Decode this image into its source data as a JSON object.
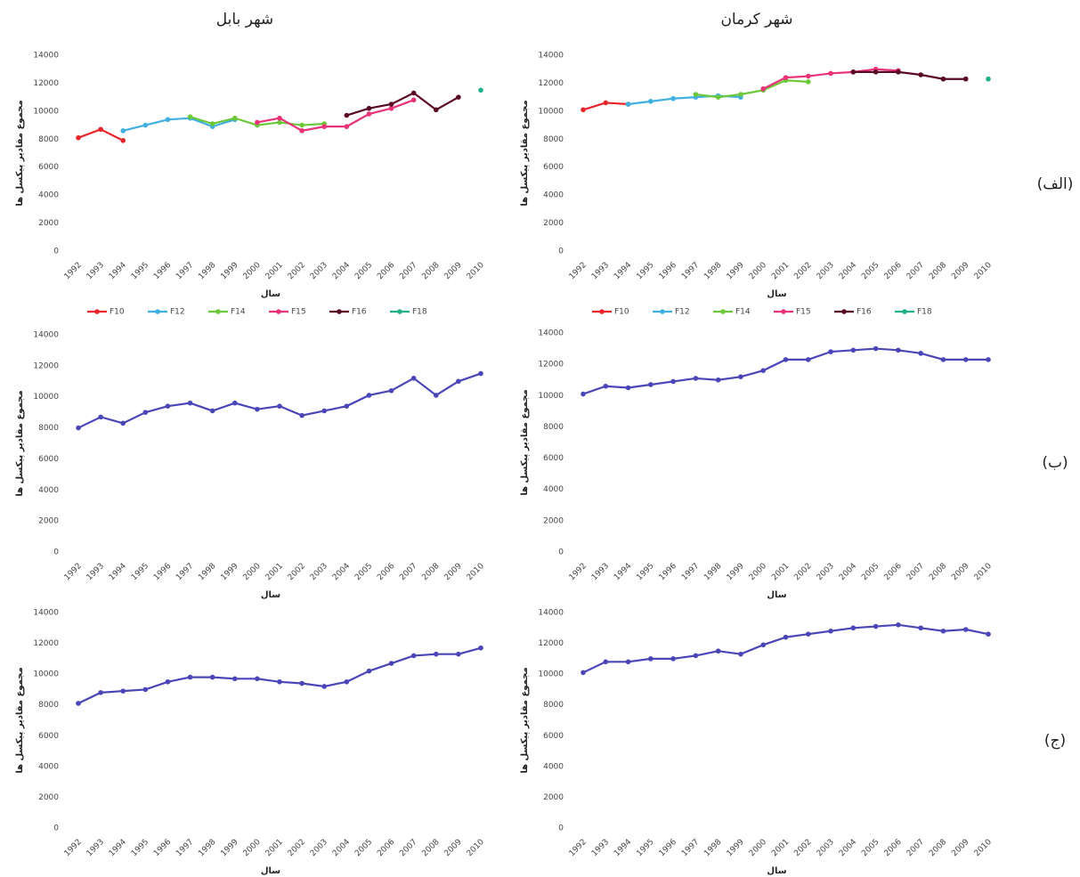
{
  "column_titles": [
    "شهر بابل",
    "شهر کرمان"
  ],
  "row_labels": [
    "(الف)",
    "(ب)",
    "(ج)"
  ],
  "chart_data": [
    {
      "type": "line",
      "xlabel": "سال",
      "ylabel": "مجموع مقادیر پیکسل ها",
      "categories": [
        "1992",
        "1993",
        "1994",
        "1995",
        "1996",
        "1997",
        "1998",
        "1999",
        "2000",
        "2001",
        "2002",
        "2003",
        "2004",
        "2005",
        "2006",
        "2007",
        "2008",
        "2009",
        "2010"
      ],
      "ylim": [
        0,
        14000
      ],
      "yticks": [
        0,
        2000,
        4000,
        6000,
        8000,
        10000,
        12000,
        14000
      ],
      "legend": "bottom",
      "series": [
        {
          "name": "F10",
          "color": "#e8262b",
          "values": [
            8100,
            8700,
            7900,
            null,
            null,
            null,
            null,
            null,
            null,
            null,
            null,
            null,
            null,
            null,
            null,
            null,
            null,
            null,
            null
          ]
        },
        {
          "name": "F12",
          "color": "#3fb0e0",
          "values": [
            null,
            null,
            8600,
            9000,
            9400,
            9500,
            8900,
            9400,
            null,
            null,
            null,
            null,
            null,
            null,
            null,
            null,
            null,
            null,
            null
          ]
        },
        {
          "name": "F14",
          "color": "#6cc83a",
          "values": [
            null,
            null,
            null,
            null,
            null,
            9600,
            9100,
            9500,
            9000,
            9200,
            9000,
            9100,
            null,
            null,
            null,
            null,
            null,
            null,
            null
          ]
        },
        {
          "name": "F15",
          "color": "#e8327a",
          "values": [
            null,
            null,
            null,
            null,
            null,
            null,
            null,
            null,
            9200,
            9500,
            8600,
            8900,
            8900,
            9800,
            10200,
            10800,
            null,
            null,
            null
          ]
        },
        {
          "name": "F16",
          "color": "#5a0a26",
          "values": [
            null,
            null,
            null,
            null,
            null,
            null,
            null,
            null,
            null,
            null,
            null,
            null,
            9700,
            10200,
            10500,
            11300,
            10100,
            11000,
            null
          ]
        },
        {
          "name": "F18",
          "color": "#22b08a",
          "values": [
            null,
            null,
            null,
            null,
            null,
            null,
            null,
            null,
            null,
            null,
            null,
            null,
            null,
            null,
            null,
            null,
            null,
            null,
            11500
          ]
        }
      ]
    },
    {
      "type": "line",
      "xlabel": "سال",
      "ylabel": "مجموع مقادیر پیکسل ها",
      "categories": [
        "1992",
        "1993",
        "1994",
        "1995",
        "1996",
        "1997",
        "1998",
        "1999",
        "2000",
        "2001",
        "2002",
        "2003",
        "2004",
        "2005",
        "2006",
        "2007",
        "2008",
        "2009",
        "2010"
      ],
      "ylim": [
        0,
        14000
      ],
      "yticks": [
        0,
        2000,
        4000,
        6000,
        8000,
        10000,
        12000,
        14000
      ],
      "legend": "bottom",
      "series": [
        {
          "name": "F10",
          "color": "#e8262b",
          "values": [
            10100,
            10600,
            10500,
            null,
            null,
            null,
            null,
            null,
            null,
            null,
            null,
            null,
            null,
            null,
            null,
            null,
            null,
            null,
            null
          ]
        },
        {
          "name": "F12",
          "color": "#3fb0e0",
          "values": [
            null,
            null,
            10500,
            10700,
            10900,
            11000,
            11100,
            11000,
            null,
            null,
            null,
            null,
            null,
            null,
            null,
            null,
            null,
            null,
            null
          ]
        },
        {
          "name": "F14",
          "color": "#6cc83a",
          "values": [
            null,
            null,
            null,
            null,
            null,
            11200,
            11000,
            11200,
            11500,
            12200,
            12100,
            null,
            null,
            null,
            null,
            null,
            null,
            null,
            null
          ]
        },
        {
          "name": "F15",
          "color": "#e8327a",
          "values": [
            null,
            null,
            null,
            null,
            null,
            null,
            null,
            null,
            11600,
            12400,
            12500,
            12700,
            12800,
            13000,
            12900,
            null,
            null,
            null,
            null
          ]
        },
        {
          "name": "F16",
          "color": "#5a0a26",
          "values": [
            null,
            null,
            null,
            null,
            null,
            null,
            null,
            null,
            null,
            null,
            null,
            null,
            12800,
            12800,
            12800,
            12600,
            12300,
            12300,
            null
          ]
        },
        {
          "name": "F18",
          "color": "#22b08a",
          "values": [
            null,
            null,
            null,
            null,
            null,
            null,
            null,
            null,
            null,
            null,
            null,
            null,
            null,
            null,
            null,
            null,
            null,
            null,
            12300
          ]
        }
      ]
    },
    {
      "type": "line",
      "xlabel": "سال",
      "ylabel": "مجموع مقادیر پیکسل ها",
      "categories": [
        "1992",
        "1993",
        "1994",
        "1995",
        "1996",
        "1997",
        "1998",
        "1999",
        "2000",
        "2001",
        "2002",
        "2003",
        "2004",
        "2005",
        "2006",
        "2007",
        "2008",
        "2009",
        "2010"
      ],
      "ylim": [
        0,
        14000
      ],
      "yticks": [
        0,
        2000,
        4000,
        6000,
        8000,
        10000,
        12000,
        14000
      ],
      "color": "#4a46b8",
      "values": [
        8000,
        8700,
        8300,
        9000,
        9400,
        9600,
        9100,
        9600,
        9200,
        9400,
        8800,
        9100,
        9400,
        10100,
        10400,
        11200,
        10100,
        11000,
        11500
      ]
    },
    {
      "type": "line",
      "xlabel": "سال",
      "ylabel": "مجموع مقادیر پیکسل ها",
      "categories": [
        "1992",
        "1993",
        "1994",
        "1995",
        "1996",
        "1997",
        "1998",
        "1999",
        "2000",
        "2001",
        "2002",
        "2003",
        "2004",
        "2005",
        "2006",
        "2007",
        "2008",
        "2009",
        "2010"
      ],
      "ylim": [
        0,
        14000
      ],
      "yticks": [
        0,
        2000,
        4000,
        6000,
        8000,
        10000,
        12000,
        14000
      ],
      "color": "#4a46b8",
      "values": [
        10100,
        10600,
        10500,
        10700,
        10900,
        11100,
        11000,
        11200,
        11600,
        12300,
        12300,
        12800,
        12900,
        13000,
        12900,
        12700,
        12300,
        12300,
        12300
      ]
    },
    {
      "type": "line",
      "xlabel": "سال",
      "ylabel": "مجموع مقادیر پیکسل ها",
      "categories": [
        "1992",
        "1993",
        "1994",
        "1995",
        "1996",
        "1997",
        "1998",
        "1999",
        "2000",
        "2001",
        "2002",
        "2003",
        "2004",
        "2005",
        "2006",
        "2007",
        "2008",
        "2009",
        "2010"
      ],
      "ylim": [
        0,
        14000
      ],
      "yticks": [
        0,
        2000,
        4000,
        6000,
        8000,
        10000,
        12000,
        14000
      ],
      "color": "#4a46b8",
      "values": [
        8100,
        8800,
        8900,
        9000,
        9500,
        9800,
        9800,
        9700,
        9700,
        9500,
        9400,
        9200,
        9500,
        10200,
        10700,
        11200,
        11300,
        11300,
        11700
      ]
    },
    {
      "type": "line",
      "xlabel": "سال",
      "ylabel": "مجموع مقادیر پیکسل ها",
      "categories": [
        "1992",
        "1993",
        "1994",
        "1995",
        "1996",
        "1997",
        "1998",
        "1999",
        "2000",
        "2001",
        "2002",
        "2003",
        "2004",
        "2005",
        "2006",
        "2007",
        "2008",
        "2009",
        "2010"
      ],
      "ylim": [
        0,
        14000
      ],
      "yticks": [
        0,
        2000,
        4000,
        6000,
        8000,
        10000,
        12000,
        14000
      ],
      "color": "#4a46b8",
      "values": [
        10100,
        10800,
        10800,
        11000,
        11000,
        11200,
        11500,
        11300,
        11900,
        12400,
        12600,
        12800,
        13000,
        13100,
        13200,
        13000,
        12800,
        12900,
        12600
      ]
    }
  ]
}
